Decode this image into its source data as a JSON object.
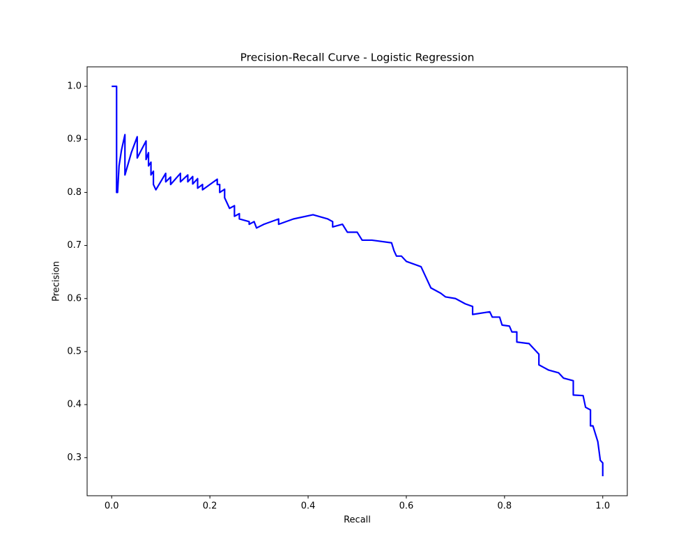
{
  "chart_data": {
    "type": "line",
    "title": "Precision-Recall Curve - Logistic Regression",
    "xlabel": "Recall",
    "ylabel": "Precision",
    "color": "#0000ff",
    "xlim": [
      -0.05,
      1.05
    ],
    "ylim": [
      0.2282,
      1.0368
    ],
    "xticks": [
      {
        "value": 0,
        "label": "0.0"
      },
      0.2,
      0.4,
      0.6,
      0.8,
      {
        "value": 1,
        "label": "1.0"
      }
    ],
    "yticks": [
      0.3,
      0.4,
      0.5,
      0.6,
      0.7,
      0.8,
      0.9,
      {
        "value": 1,
        "label": "1.0"
      }
    ],
    "x": [
      0,
      0.01,
      0.01,
      0.012,
      0.015,
      0.02,
      0.027,
      0.027,
      0.04,
      0.052,
      0.052,
      0.07,
      0.07,
      0.075,
      0.075,
      0.08,
      0.08,
      0.085,
      0.085,
      0.09,
      0.11,
      0.11,
      0.12,
      0.12,
      0.14,
      0.14,
      0.155,
      0.155,
      0.165,
      0.165,
      0.175,
      0.175,
      0.185,
      0.185,
      0.215,
      0.215,
      0.22,
      0.22,
      0.23,
      0.23,
      0.24,
      0.25,
      0.25,
      0.26,
      0.26,
      0.28,
      0.28,
      0.29,
      0.295,
      0.31,
      0.34,
      0.34,
      0.37,
      0.41,
      0.44,
      0.45,
      0.45,
      0.47,
      0.48,
      0.5,
      0.51,
      0.53,
      0.57,
      0.575,
      0.58,
      0.59,
      0.6,
      0.63,
      0.64,
      0.65,
      0.67,
      0.68,
      0.7,
      0.72,
      0.735,
      0.735,
      0.77,
      0.775,
      0.79,
      0.795,
      0.81,
      0.815,
      0.825,
      0.825,
      0.85,
      0.86,
      0.87,
      0.87,
      0.88,
      0.89,
      0.91,
      0.92,
      0.94,
      0.94,
      0.96,
      0.965,
      0.975,
      0.975,
      0.98,
      0.985,
      0.99,
      0.995,
      1.0,
      1.0
    ],
    "values": [
      1.0,
      1.0,
      0.8,
      0.8,
      0.85,
      0.88,
      0.909,
      0.833,
      0.875,
      0.905,
      0.865,
      0.897,
      0.862,
      0.875,
      0.85,
      0.857,
      0.833,
      0.84,
      0.815,
      0.805,
      0.836,
      0.82,
      0.829,
      0.815,
      0.836,
      0.82,
      0.833,
      0.82,
      0.83,
      0.816,
      0.826,
      0.808,
      0.815,
      0.805,
      0.825,
      0.815,
      0.815,
      0.8,
      0.806,
      0.79,
      0.77,
      0.775,
      0.755,
      0.76,
      0.75,
      0.745,
      0.74,
      0.745,
      0.733,
      0.74,
      0.75,
      0.74,
      0.75,
      0.758,
      0.75,
      0.745,
      0.735,
      0.74,
      0.725,
      0.725,
      0.71,
      0.71,
      0.705,
      0.69,
      0.68,
      0.68,
      0.67,
      0.66,
      0.64,
      0.62,
      0.61,
      0.603,
      0.6,
      0.59,
      0.585,
      0.57,
      0.575,
      0.565,
      0.565,
      0.55,
      0.548,
      0.537,
      0.537,
      0.518,
      0.515,
      0.505,
      0.495,
      0.475,
      0.47,
      0.465,
      0.46,
      0.45,
      0.445,
      0.418,
      0.417,
      0.395,
      0.39,
      0.36,
      0.36,
      0.345,
      0.33,
      0.295,
      0.29,
      0.265
    ]
  }
}
